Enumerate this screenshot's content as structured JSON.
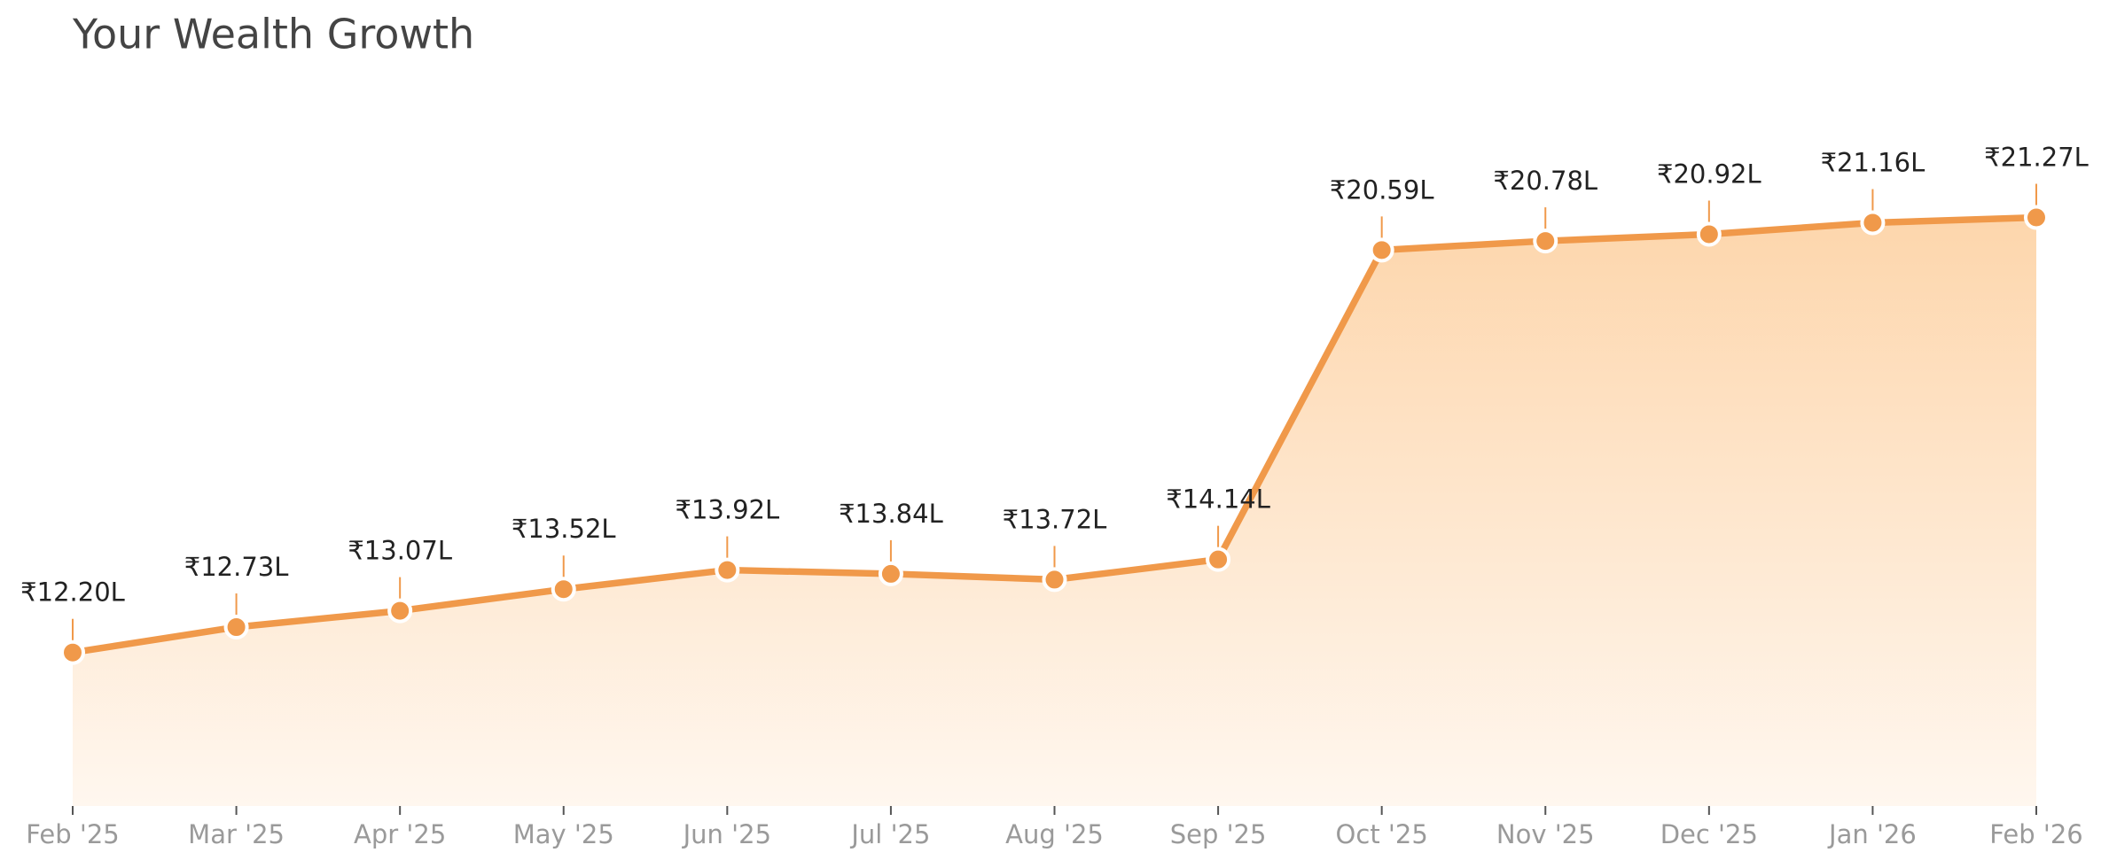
{
  "chart_data": {
    "type": "line",
    "title": "Your Wealth Growth",
    "categories": [
      "Feb '25",
      "Mar '25",
      "Apr '25",
      "May '25",
      "Jun '25",
      "Jul '25",
      "Aug '25",
      "Sep '25",
      "Oct '25",
      "Nov '25",
      "Dec '25",
      "Jan '26",
      "Feb '26"
    ],
    "values": [
      12.2,
      12.73,
      13.07,
      13.52,
      13.92,
      13.84,
      13.72,
      14.14,
      20.59,
      20.78,
      20.92,
      21.16,
      21.27
    ],
    "value_labels": [
      "₹12.20L",
      "₹12.73L",
      "₹13.07L",
      "₹13.52L",
      "₹13.92L",
      "₹13.84L",
      "₹13.72L",
      "₹14.14L",
      "₹20.59L",
      "₹20.78L",
      "₹20.92L",
      "₹21.16L",
      "₹21.27L"
    ],
    "color": "#f0994a",
    "ylim": [
      9,
      22
    ]
  }
}
